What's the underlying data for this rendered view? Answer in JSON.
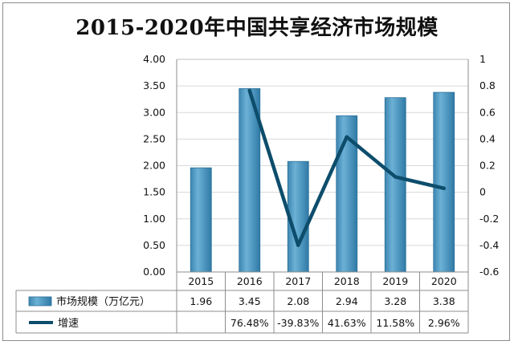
{
  "chart_data": {
    "type": "bar",
    "title": "2015-2020年中国共享经济市场规模",
    "categories": [
      "2015",
      "2016",
      "2017",
      "2018",
      "2019",
      "2020"
    ],
    "y_left": {
      "ylim": [
        0,
        4
      ],
      "ticks": [
        "4.00",
        "3.50",
        "3.00",
        "2.50",
        "2.00",
        "1.50",
        "1.00",
        "0.50",
        "0.00"
      ]
    },
    "y_right": {
      "ylim": [
        -0.6,
        1
      ],
      "ticks": [
        "1",
        "0.8",
        "0.6",
        "0.4",
        "0.2",
        "0",
        "-0.2",
        "-0.4",
        "-0.6"
      ]
    },
    "grid": true,
    "legend": "data-table",
    "series": [
      {
        "name": "市场规模（万亿元）",
        "kind": "bar",
        "axis": "left",
        "color": "#4f98c2",
        "values": [
          1.96,
          3.45,
          2.08,
          2.94,
          3.28,
          3.38
        ],
        "labels": [
          "1.96",
          "3.45",
          "2.08",
          "2.94",
          "3.28",
          "3.38"
        ]
      },
      {
        "name": "增速",
        "kind": "line",
        "axis": "right",
        "color": "#0d4d6b",
        "values": [
          null,
          0.7648,
          -0.3983,
          0.4163,
          0.1158,
          0.0296
        ],
        "labels": [
          "",
          "76.48%",
          "-39.83%",
          "41.63%",
          "11.58%",
          "2.96%"
        ]
      }
    ]
  }
}
